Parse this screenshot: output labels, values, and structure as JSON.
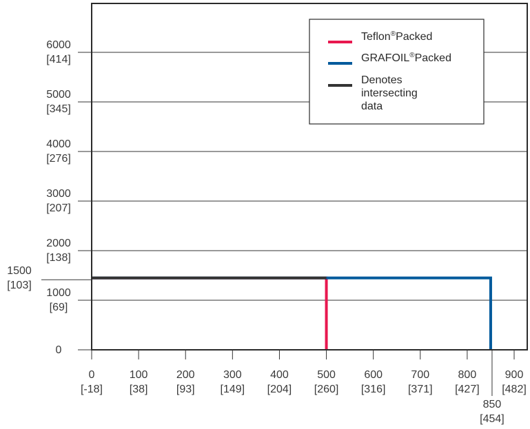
{
  "chart_data": {
    "type": "line",
    "title": "",
    "xlabel": "",
    "ylabel": "",
    "xlim": [
      0,
      920
    ],
    "ylim": [
      0,
      6000
    ],
    "grid": "horizontal",
    "legend_position": "top-right",
    "x_ticks": [
      {
        "value": 0,
        "label": "0",
        "sub": "[-18]"
      },
      {
        "value": 100,
        "label": "100",
        "sub": "[38]"
      },
      {
        "value": 200,
        "label": "200",
        "sub": "[93]"
      },
      {
        "value": 300,
        "label": "300",
        "sub": "[149]"
      },
      {
        "value": 400,
        "label": "400",
        "sub": "[204]"
      },
      {
        "value": 500,
        "label": "500",
        "sub": "[260]"
      },
      {
        "value": 600,
        "label": "600",
        "sub": "[316]"
      },
      {
        "value": 700,
        "label": "700",
        "sub": "[371]"
      },
      {
        "value": 800,
        "label": "800",
        "sub": "[427]"
      },
      {
        "value": 900,
        "label": "900",
        "sub": "[482]"
      }
    ],
    "x_extra_tick": {
      "value": 850,
      "label": "850",
      "sub": "[454]"
    },
    "y_ticks": [
      {
        "value": 0,
        "label": "0",
        "sub": ""
      },
      {
        "value": 1000,
        "label": "1000",
        "sub": "[69]"
      },
      {
        "value": 2000,
        "label": "2000",
        "sub": "[138]"
      },
      {
        "value": 3000,
        "label": "3000",
        "sub": "[207]"
      },
      {
        "value": 4000,
        "label": "4000",
        "sub": "[276]"
      },
      {
        "value": 5000,
        "label": "5000",
        "sub": "[345]"
      },
      {
        "value": 6000,
        "label": "6000",
        "sub": "[414]"
      }
    ],
    "y_extra_tick": {
      "value": 1500,
      "label": "1500",
      "sub": "[103]"
    },
    "series": [
      {
        "name": "Teflon",
        "name_suffix": "Packed",
        "sup": "®",
        "color": "#e8174f",
        "points": [
          [
            0,
            1450
          ],
          [
            500,
            1450
          ],
          [
            500,
            0
          ]
        ]
      },
      {
        "name": "GRAFOIL",
        "name_suffix": "Packed",
        "sup": "®",
        "color": "#005a9c",
        "points": [
          [
            0,
            1450
          ],
          [
            850,
            1450
          ],
          [
            850,
            0
          ]
        ]
      },
      {
        "name": "Denotes intersecting data",
        "color": "#333333",
        "points": [
          [
            0,
            1450
          ],
          [
            500,
            1450
          ]
        ]
      }
    ],
    "legend": [
      {
        "lines": [
          "Teflon"
        ],
        "sup": "®",
        "suffix": "Packed",
        "color": "#e8174f"
      },
      {
        "lines": [
          "GRAFOIL"
        ],
        "sup": "®",
        "suffix": "Packed",
        "color": "#005a9c"
      },
      {
        "lines": [
          "Denotes",
          "intersecting",
          "data"
        ],
        "sup": "",
        "suffix": "",
        "color": "#333333"
      }
    ]
  }
}
